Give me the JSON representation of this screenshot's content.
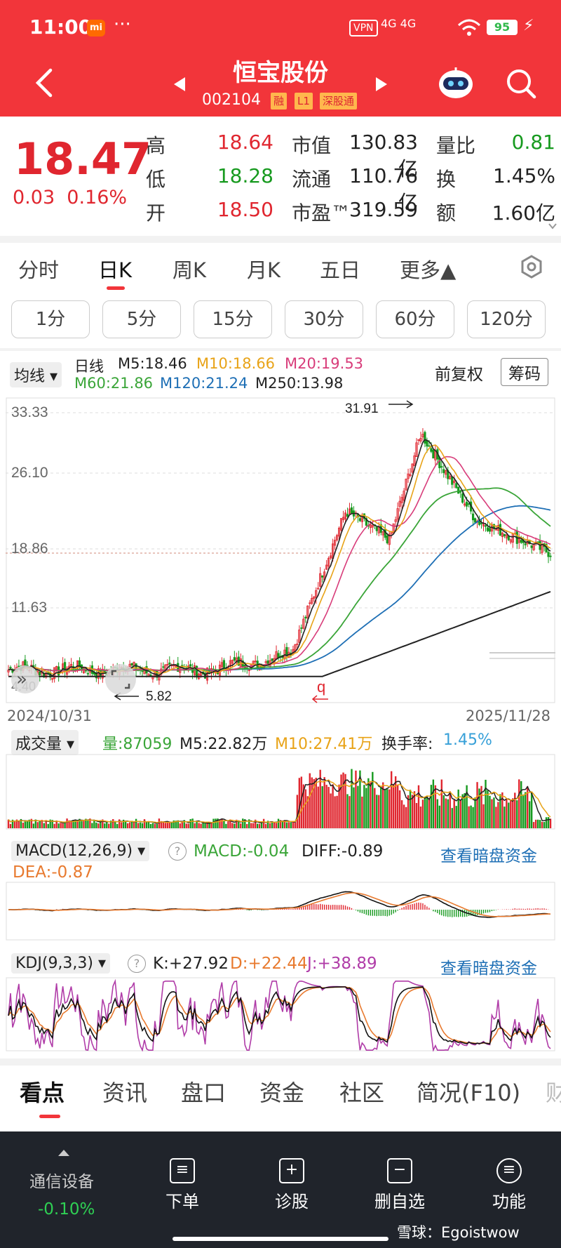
{
  "status": {
    "time": "11:00",
    "mi": "mi",
    "dots": "···",
    "vpn": "VPN",
    "net": "4G 4G",
    "battery": "95"
  },
  "header": {
    "title": "恒宝股份",
    "code": "002104",
    "tags": [
      "融",
      "L1",
      "深股通"
    ]
  },
  "quote": {
    "price": "18.47",
    "change": "0.03",
    "change_pct": "0.16%",
    "rows": [
      {
        "l1": "高",
        "v1": "18.64",
        "l2": "市值",
        "v2": "130.83亿",
        "l3": "量比",
        "v3": "0.81"
      },
      {
        "l1": "低",
        "v1": "18.28",
        "l2": "流通",
        "v2": "110.76亿",
        "l3": "换",
        "v3": "1.45%"
      },
      {
        "l1": "开",
        "v1": "18.50",
        "l2": "市盈™",
        "v2": "319.59",
        "l3": "额",
        "v3": "1.60亿"
      }
    ],
    "colors": {
      "up": "#e0262f",
      "down": "#179a1f"
    }
  },
  "period_tabs": [
    "分时",
    "日K",
    "周K",
    "月K",
    "五日",
    "更多▲"
  ],
  "minute_buttons": [
    "1分",
    "5分",
    "15分",
    "30分",
    "60分",
    "120分"
  ],
  "kline": {
    "ma_selector": "均线 ▾",
    "line_type": "日线",
    "ma": [
      {
        "label": "M5:18.46",
        "color": "#222"
      },
      {
        "label": "M10:18.66",
        "color": "#e8a317"
      },
      {
        "label": "M20:19.53",
        "color": "#d83c7a"
      },
      {
        "label": "M60:21.86",
        "color": "#3aa538"
      },
      {
        "label": "M120:21.24",
        "color": "#1e6fb5"
      },
      {
        "label": "M250:13.98",
        "color": "#222"
      }
    ],
    "adjust": "前复权",
    "chip_btn": "筹码",
    "yticks": [
      "33.33",
      "26.10",
      "18.86",
      "11.63",
      "4.40"
    ],
    "high_mark": "31.91",
    "low_mark": "5.82",
    "q_mark": "q",
    "date_start": "2024/10/31",
    "date_end": "2025/11/28"
  },
  "volume": {
    "selector": "成交量 ▾",
    "vol": "量:87059",
    "m5": "M5:22.82万",
    "m10": "M10:27.41万",
    "turnover_label": "换手率:",
    "turnover": "1.45%"
  },
  "macd": {
    "selector": "MACD(12,26,9) ▾",
    "help": "?",
    "macd": "MACD:-0.04",
    "diff": "DIFF:-0.89",
    "dea": "DEA:-0.87",
    "link": "查看暗盘资金"
  },
  "kdj": {
    "selector": "KDJ(9,3,3) ▾",
    "help": "?",
    "k": "K:+27.92",
    "d": "D:+22.44",
    "j": "J:+38.89",
    "link": "查看暗盘资金"
  },
  "bottom_tabs": [
    "看点",
    "资讯",
    "盘口",
    "资金",
    "社区",
    "简况(F10)",
    "财"
  ],
  "nav": {
    "sector": "通信设备",
    "sector_chg": "-0.10%",
    "items": [
      "下单",
      "诊股",
      "删自选",
      "功能"
    ],
    "watermark": "雪球：Egoistwow"
  }
}
